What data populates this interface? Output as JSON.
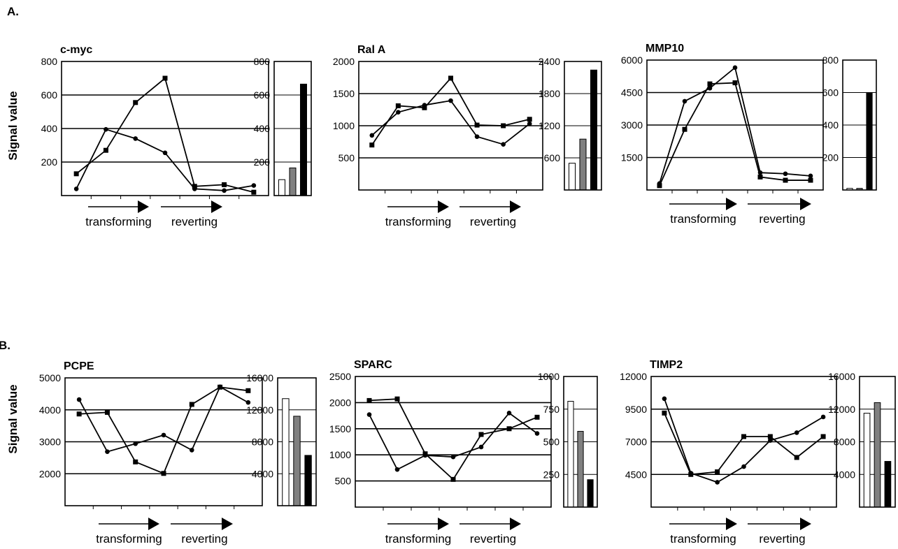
{
  "panels": [
    {
      "label": "A.",
      "ylabel": "Signal value"
    },
    {
      "label": "B.",
      "ylabel": "Signal value"
    }
  ],
  "arrow_labels": {
    "transforming": "transforming",
    "reverting": "reverting"
  },
  "colors": {
    "line": "#000000",
    "bar_white": "#ffffff",
    "bar_gray": "#808080",
    "bar_black": "#000000"
  },
  "chart_data": [
    {
      "type": "line",
      "title": "c-myc",
      "ylim": [
        0,
        800
      ],
      "yticks": [
        200,
        400,
        600,
        800
      ],
      "grid": "horizontal",
      "series": [
        {
          "marker": "square",
          "values": [
            130,
            270,
            555,
            700,
            55,
            65,
            20
          ]
        },
        {
          "marker": "circle",
          "values": [
            40,
            395,
            340,
            255,
            40,
            30,
            60
          ]
        }
      ]
    },
    {
      "type": "bar",
      "ylim": [
        0,
        800
      ],
      "yticks": [
        200,
        400,
        600,
        800
      ],
      "values": [
        95,
        165,
        665
      ]
    },
    {
      "type": "line",
      "title": "Ral A",
      "ylim": [
        0,
        2000
      ],
      "yticks": [
        500,
        1000,
        1500,
        2000
      ],
      "grid": "horizontal",
      "series": [
        {
          "marker": "square",
          "values": [
            700,
            1310,
            1280,
            1740,
            1010,
            1000,
            1100
          ]
        },
        {
          "marker": "circle",
          "values": [
            850,
            1210,
            1320,
            1390,
            830,
            710,
            1030
          ]
        }
      ]
    },
    {
      "type": "bar",
      "ylim": [
        0,
        2400
      ],
      "yticks": [
        600,
        1200,
        1800,
        2400
      ],
      "values": [
        500,
        950,
        2240
      ]
    },
    {
      "type": "line",
      "title": "MMP10",
      "ylim": [
        0,
        6000
      ],
      "yticks": [
        1500,
        3000,
        4500,
        6000
      ],
      "grid": "horizontal",
      "series": [
        {
          "marker": "square",
          "values": [
            200,
            2800,
            4900,
            4950,
            600,
            450,
            450
          ]
        },
        {
          "marker": "circle",
          "values": [
            300,
            4100,
            4700,
            5650,
            800,
            750,
            650
          ]
        }
      ]
    },
    {
      "type": "bar",
      "ylim": [
        0,
        800
      ],
      "yticks": [
        200,
        400,
        600,
        800
      ],
      "values": [
        10,
        10,
        600
      ]
    },
    {
      "type": "line",
      "title": "PCPE",
      "ylim": [
        1000,
        5000
      ],
      "yticks": [
        2000,
        3000,
        4000,
        5000
      ],
      "grid": "horizontal",
      "series": [
        {
          "marker": "square",
          "values": [
            3870,
            3920,
            2370,
            2010,
            4170,
            4710,
            4600
          ]
        },
        {
          "marker": "circle",
          "values": [
            4320,
            2690,
            2940,
            3210,
            2740,
            4720,
            4230
          ]
        }
      ]
    },
    {
      "type": "bar",
      "ylim": [
        0,
        16000
      ],
      "yticks": [
        4000,
        8000,
        12000,
        16000
      ],
      "values": [
        13400,
        11200,
        6300
      ]
    },
    {
      "type": "line",
      "title": "SPARC",
      "ylim": [
        0,
        2500
      ],
      "yticks": [
        500,
        1000,
        1500,
        2000,
        2500
      ],
      "grid": "horizontal",
      "series": [
        {
          "marker": "square",
          "values": [
            2040,
            2070,
            1020,
            530,
            1390,
            1500,
            1720
          ]
        },
        {
          "marker": "circle",
          "values": [
            1770,
            720,
            990,
            960,
            1150,
            1800,
            1410
          ]
        }
      ]
    },
    {
      "type": "bar",
      "ylim": [
        0,
        1000
      ],
      "yticks": [
        250,
        500,
        750,
        1000
      ],
      "values": [
        810,
        580,
        210
      ]
    },
    {
      "type": "line",
      "title": "TIMP2",
      "ylim": [
        2000,
        12000
      ],
      "yticks": [
        4500,
        7000,
        9500,
        12000
      ],
      "grid": "horizontal",
      "series": [
        {
          "marker": "square",
          "values": [
            9200,
            4500,
            4700,
            7400,
            7400,
            5800,
            7400
          ]
        },
        {
          "marker": "circle",
          "values": [
            10300,
            4600,
            3900,
            5100,
            7100,
            7700,
            8900
          ]
        }
      ]
    },
    {
      "type": "bar",
      "ylim": [
        0,
        16000
      ],
      "yticks": [
        4000,
        8000,
        12000,
        16000
      ],
      "values": [
        11500,
        12800,
        5600
      ]
    }
  ]
}
